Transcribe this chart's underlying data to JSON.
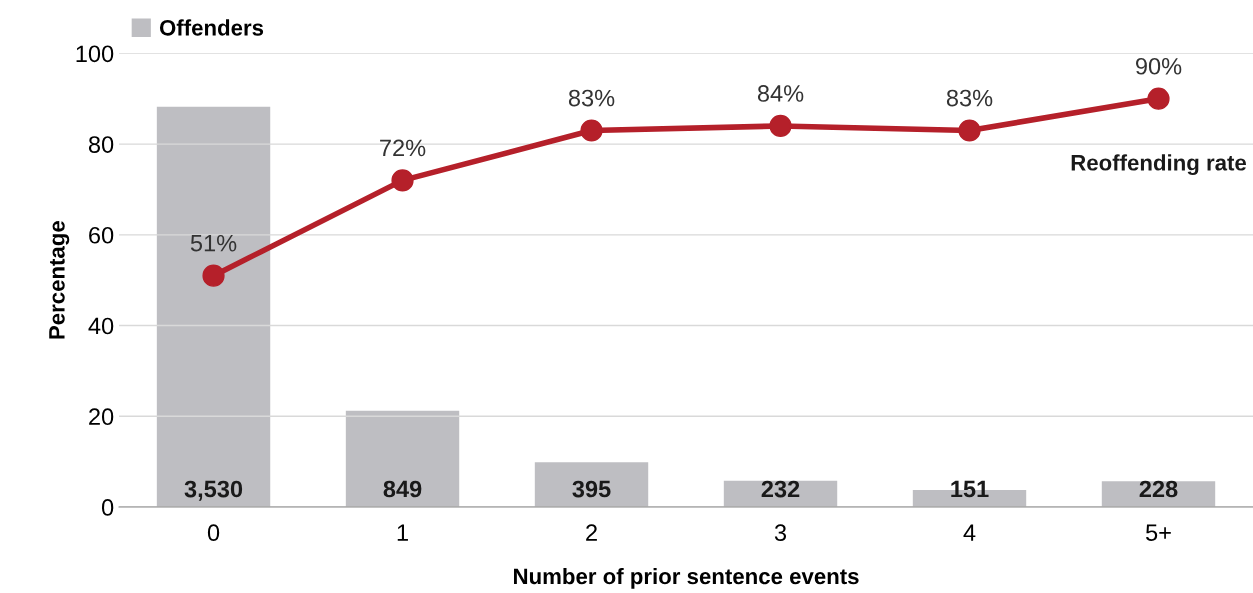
{
  "chart_data": {
    "type": "bar",
    "xlabel": "Number of prior sentence events",
    "ylabel": "Percentage",
    "categories": [
      "0",
      "1",
      "2",
      "3",
      "4",
      "5+"
    ],
    "series": [
      {
        "name": "Offenders",
        "axis": "y2",
        "color": "#bebec2",
        "values": [
          3530,
          849,
          395,
          232,
          151,
          228
        ],
        "value_labels": [
          "3,530",
          "849",
          "395",
          "232",
          "151",
          "228"
        ]
      },
      {
        "name": "Reoffending rate",
        "type": "line",
        "color": "#b5202a",
        "values": [
          51,
          72,
          83,
          84,
          83,
          90
        ],
        "value_labels": [
          "51%",
          "72%",
          "83%",
          "84%",
          "83%",
          "90%"
        ]
      }
    ],
    "ylim": [
      0,
      100
    ],
    "yticks": [
      0,
      20,
      40,
      60,
      80,
      100
    ],
    "y2lim": [
      0,
      4000
    ],
    "grid": "y",
    "legend": "top left",
    "marker": "circle",
    "line_style": "solid"
  }
}
